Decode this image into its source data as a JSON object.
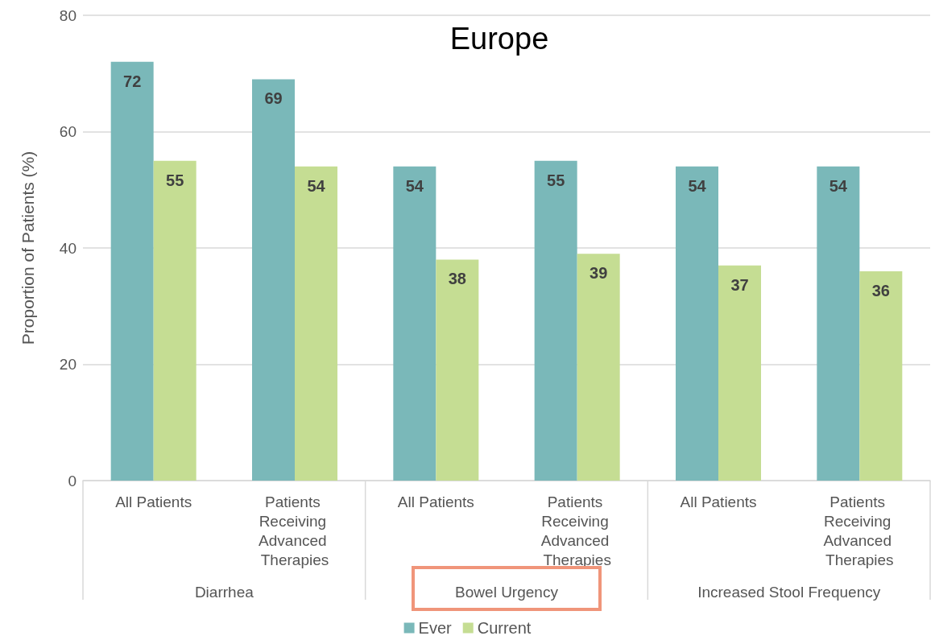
{
  "chart_data": {
    "type": "bar",
    "title": "Europe",
    "ylabel": "Proportion of Patients (%)",
    "categories": [
      "All Patients",
      "Patients Receiving Advanced Therapies",
      "All Patients",
      "Patients Receiving Advanced Therapies",
      "All Patients",
      "Patients Receiving Advanced Therapies"
    ],
    "series": [
      {
        "name": "Ever",
        "color": "#7ab8b9",
        "values": [
          72,
          69,
          54,
          55,
          54,
          54
        ]
      },
      {
        "name": "Current",
        "color": "#c5dd93",
        "values": [
          55,
          54,
          38,
          39,
          37,
          36
        ]
      }
    ],
    "annotations": [
      "Diarrhea",
      "Bowel Urgency",
      "Increased Stool Frequency"
    ],
    "ylim": [
      0,
      80
    ],
    "yticks": [
      0,
      20,
      40,
      60,
      80
    ],
    "grid": "y",
    "legend": "bottom",
    "data_labels": true
  }
}
